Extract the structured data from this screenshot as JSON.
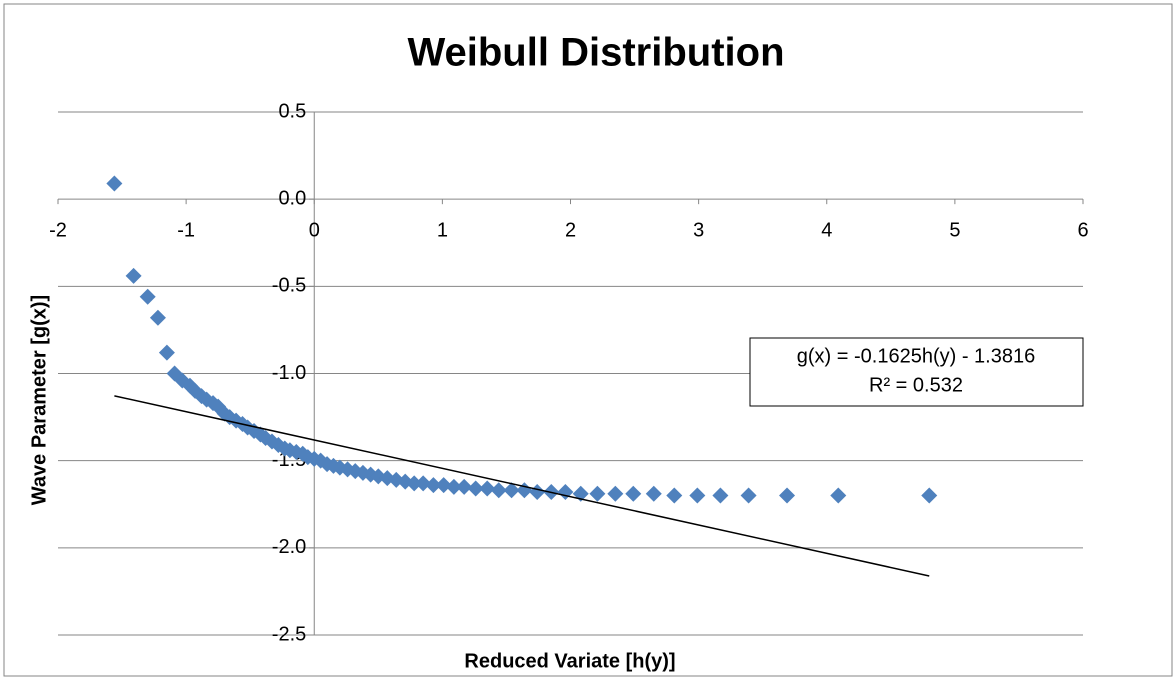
{
  "chart_data": {
    "type": "scatter",
    "title": "Weibull Distribution",
    "x_label": "Reduced Variate [h(y)]",
    "y_label": "Wave Parameter [g(x)]",
    "series": [
      {
        "color": "#4f81bd",
        "x": [
          -1.56,
          -1.41,
          -1.3,
          -1.22,
          -1.15,
          -1.09,
          -1.03,
          -0.97,
          -0.93,
          -0.88,
          -0.84,
          -0.79,
          -0.75,
          -0.7,
          -0.66,
          -0.61,
          -0.56,
          -0.52,
          -0.47,
          -0.42,
          -0.38,
          -0.33,
          -0.28,
          -0.23,
          -0.19,
          -0.14,
          -0.09,
          -0.05,
          0.0,
          0.05,
          0.1,
          0.15,
          0.2,
          0.26,
          0.32,
          0.38,
          0.44,
          0.5,
          0.57,
          0.64,
          0.71,
          0.78,
          0.85,
          0.93,
          1.01,
          1.09,
          1.17,
          1.26,
          1.35,
          1.44,
          1.54,
          1.64,
          1.74,
          1.85,
          1.96,
          2.08,
          2.21,
          2.35,
          2.49,
          2.65,
          2.81,
          2.99,
          3.17,
          3.39,
          3.69,
          4.09,
          4.8
        ],
        "values": [
          0.09,
          -0.44,
          -0.56,
          -0.68,
          -0.88,
          -1.0,
          -1.04,
          -1.07,
          -1.1,
          -1.13,
          -1.15,
          -1.17,
          -1.19,
          -1.23,
          -1.25,
          -1.27,
          -1.29,
          -1.31,
          -1.33,
          -1.35,
          -1.37,
          -1.39,
          -1.41,
          -1.43,
          -1.44,
          -1.45,
          -1.46,
          -1.48,
          -1.49,
          -1.5,
          -1.52,
          -1.53,
          -1.54,
          -1.55,
          -1.56,
          -1.57,
          -1.58,
          -1.59,
          -1.6,
          -1.61,
          -1.62,
          -1.63,
          -1.63,
          -1.64,
          -1.64,
          -1.65,
          -1.65,
          -1.66,
          -1.66,
          -1.67,
          -1.67,
          -1.67,
          -1.68,
          -1.68,
          -1.68,
          -1.69,
          -1.69,
          -1.69,
          -1.69,
          -1.69,
          -1.7,
          -1.7,
          -1.7,
          -1.7,
          -1.7,
          -1.7,
          -1.7
        ]
      }
    ],
    "trendline": {
      "slope": -0.1625,
      "intercept": -1.3816,
      "equation": "g(x) = -0.1625h(y) - 1.3816",
      "r_squared": "R² = 0.532",
      "color": "#000000"
    },
    "xlim": [
      -2,
      6
    ],
    "xticks": [
      -2,
      -1,
      0,
      1,
      2,
      3,
      4,
      5,
      6
    ],
    "ylim": [
      -2.5,
      0.5
    ],
    "yticks": [
      0.5,
      {
        "value": 0,
        "label": "0.0"
      },
      -0.5,
      {
        "value": -1,
        "label": "-1.0"
      },
      -1.5,
      {
        "value": -2,
        "label": "-2.0"
      },
      -2.5
    ],
    "grid": true
  }
}
